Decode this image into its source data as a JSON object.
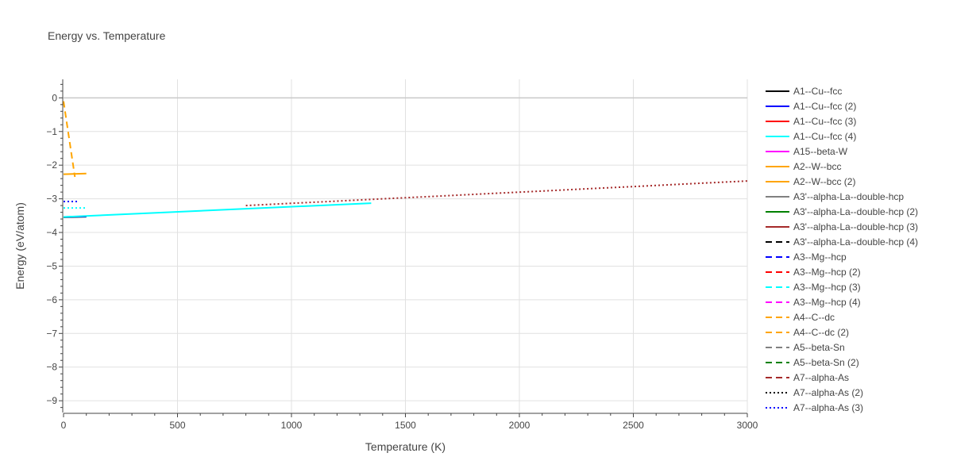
{
  "chart_data": {
    "type": "line",
    "title": "Energy vs. Temperature",
    "xlabel": "Temperature (K)",
    "ylabel": "Energy (eV/atom)",
    "xlim": [
      0,
      3000
    ],
    "ylim": [
      -9.35,
      0.55
    ],
    "x_ticks": [
      0,
      500,
      1000,
      1500,
      2000,
      2500,
      3000
    ],
    "x_tick_labels": [
      "0",
      "500",
      "1000",
      "1500",
      "2000",
      "2500",
      "3000"
    ],
    "y_ticks": [
      0,
      -1,
      -2,
      -3,
      -4,
      -5,
      -6,
      -7,
      -8,
      -9
    ],
    "y_tick_labels": [
      "0",
      "−1",
      "−2",
      "−3",
      "−4",
      "−5",
      "−6",
      "−7",
      "−8",
      "−9"
    ],
    "grid": true,
    "legend_position": "right",
    "series": [
      {
        "name": "A1--Cu--fcc",
        "color": "#000000",
        "dash": "solid",
        "x": [
          0,
          100
        ],
        "y": [
          -3.55,
          -3.53
        ]
      },
      {
        "name": "A1--Cu--fcc (2)",
        "color": "#0000ff",
        "dash": "solid",
        "x": [
          0,
          100
        ],
        "y": [
          -3.54,
          -3.52
        ]
      },
      {
        "name": "A1--Cu--fcc (3)",
        "color": "#ff0000",
        "dash": "solid",
        "x": [],
        "y": []
      },
      {
        "name": "A1--Cu--fcc (4)",
        "color": "#00ffff",
        "dash": "solid",
        "x": [
          0,
          1350
        ],
        "y": [
          -3.54,
          -3.13
        ]
      },
      {
        "name": "A15--beta-W",
        "color": "#ff00ff",
        "dash": "solid",
        "x": [],
        "y": []
      },
      {
        "name": "A2--W--bcc",
        "color": "#ffa500",
        "dash": "solid",
        "x": [
          0,
          100
        ],
        "y": [
          -2.27,
          -2.25
        ]
      },
      {
        "name": "A2--W--bcc (2)",
        "color": "#ffa500",
        "dash": "solid",
        "x": [],
        "y": []
      },
      {
        "name": "A3'--alpha-La--double-hcp",
        "color": "#808080",
        "dash": "solid",
        "x": [],
        "y": []
      },
      {
        "name": "A3'--alpha-La--double-hcp (2)",
        "color": "#008000",
        "dash": "solid",
        "x": [],
        "y": []
      },
      {
        "name": "A3'--alpha-La--double-hcp (3)",
        "color": "#a52a2a",
        "dash": "solid",
        "x": [],
        "y": []
      },
      {
        "name": "A3'--alpha-La--double-hcp (4)",
        "color": "#000000",
        "dash": "dash",
        "x": [],
        "y": []
      },
      {
        "name": "A3--Mg--hcp",
        "color": "#0000ff",
        "dash": "dash",
        "x": [],
        "y": []
      },
      {
        "name": "A3--Mg--hcp (2)",
        "color": "#ff0000",
        "dash": "dash",
        "x": [],
        "y": []
      },
      {
        "name": "A3--Mg--hcp (3)",
        "color": "#00ffff",
        "dash": "dash",
        "x": [],
        "y": []
      },
      {
        "name": "A3--Mg--hcp (4)",
        "color": "#ff00ff",
        "dash": "dash",
        "x": [],
        "y": []
      },
      {
        "name": "A4--C--dc",
        "color": "#ffa500",
        "dash": "dash",
        "x": [],
        "y": []
      },
      {
        "name": "A4--C--dc (2)",
        "color": "#ffa500",
        "dash": "dash",
        "x": [
          0,
          50
        ],
        "y": [
          -0.1,
          -2.35
        ]
      },
      {
        "name": "A5--beta-Sn",
        "color": "#808080",
        "dash": "dash",
        "x": [],
        "y": []
      },
      {
        "name": "A5--beta-Sn (2)",
        "color": "#008000",
        "dash": "dash",
        "x": [],
        "y": []
      },
      {
        "name": "A7--alpha-As",
        "color": "#a52a2a",
        "dash": "dash",
        "x": [],
        "y": []
      },
      {
        "name": "A7--alpha-As (2)",
        "color": "#000000",
        "dash": "dot",
        "x": [],
        "y": []
      },
      {
        "name": "A7--alpha-As (3)",
        "color": "#0000ff",
        "dash": "dot",
        "x": [
          0,
          60
        ],
        "y": [
          -3.08,
          -3.08
        ]
      },
      {
        "name": "",
        "color": "#00ffff",
        "dash": "dot",
        "x": [
          0,
          100
        ],
        "y": [
          -3.27,
          -3.27
        ]
      },
      {
        "name": "",
        "color": "#a52a2a",
        "dash": "dot",
        "x": [
          800,
          3000
        ],
        "y": [
          -3.2,
          -2.47
        ]
      }
    ]
  }
}
